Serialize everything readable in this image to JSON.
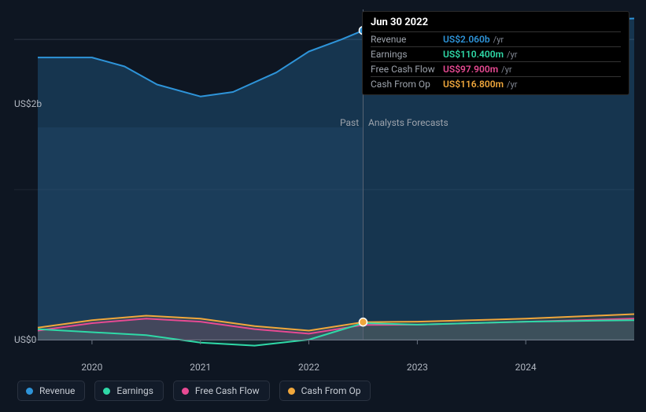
{
  "chart": {
    "type": "area-line",
    "background_color": "#0e1622",
    "plot_background_past": "#1a2a3d",
    "plot_background_future": "#0e1622",
    "grid_color": "#2f3846",
    "axis_label_color": "#b0b6c0",
    "section_label_color": "#9da3ac",
    "ylim": [
      0,
      2.2
    ],
    "ytick_positions": [
      0,
      2
    ],
    "ytick_labels": [
      "US$0",
      "US$2b"
    ],
    "x_years": [
      2019.5,
      2025
    ],
    "xtick_positions": [
      2020,
      2021,
      2022,
      2023,
      2024
    ],
    "xtick_labels": [
      "2020",
      "2021",
      "2022",
      "2023",
      "2024"
    ],
    "divider_year": 2022.5,
    "past_label": "Past",
    "forecast_label": "Analysts Forecasts",
    "series": {
      "revenue": {
        "label": "Revenue",
        "color": "#2e94d9",
        "fill_opacity": 0.25,
        "line_width": 2,
        "xs": [
          2019.5,
          2020.0,
          2020.3,
          2020.6,
          2021.0,
          2021.3,
          2021.7,
          2022.0,
          2022.3,
          2022.5,
          2022.8,
          2023.3,
          2024.0,
          2025.0
        ],
        "ys": [
          1.88,
          1.88,
          1.82,
          1.7,
          1.62,
          1.65,
          1.78,
          1.92,
          2.0,
          2.06,
          2.08,
          2.1,
          2.12,
          2.14
        ]
      },
      "earnings": {
        "label": "Earnings",
        "color": "#2fd9a7",
        "fill_opacity": 0.1,
        "line_width": 2,
        "xs": [
          2019.5,
          2020.0,
          2020.5,
          2021.0,
          2021.5,
          2022.0,
          2022.5,
          2023.0,
          2024.0,
          2025.0
        ],
        "ys": [
          0.07,
          0.05,
          0.03,
          -0.02,
          -0.04,
          0.0,
          0.11,
          0.1,
          0.12,
          0.13
        ]
      },
      "fcf": {
        "label": "Free Cash Flow",
        "color": "#e84a93",
        "fill_opacity": 0.1,
        "line_width": 2,
        "xs": [
          2019.5,
          2020.0,
          2020.5,
          2021.0,
          2021.5,
          2022.0,
          2022.5,
          2023.0,
          2024.0,
          2025.0
        ],
        "ys": [
          0.06,
          0.11,
          0.14,
          0.12,
          0.07,
          0.04,
          0.098,
          0.1,
          0.12,
          0.14
        ]
      },
      "cfo": {
        "label": "Cash From Op",
        "color": "#f0a73c",
        "fill_opacity": 0.1,
        "line_width": 2,
        "xs": [
          2019.5,
          2020.0,
          2020.5,
          2021.0,
          2021.5,
          2022.0,
          2022.5,
          2023.0,
          2024.0,
          2025.0
        ],
        "ys": [
          0.08,
          0.13,
          0.16,
          0.14,
          0.09,
          0.06,
          0.117,
          0.12,
          0.14,
          0.17
        ]
      }
    },
    "marker": {
      "x": 2022.5,
      "radius": 4,
      "stroke": "#ffffff"
    }
  },
  "tooltip": {
    "date": "Jun 30 2022",
    "unit_suffix": "/yr",
    "rows": [
      {
        "name": "Revenue",
        "value": "US$2.060b",
        "color": "#2e94d9"
      },
      {
        "name": "Earnings",
        "value": "US$110.400m",
        "color": "#2fd9a7"
      },
      {
        "name": "Free Cash Flow",
        "value": "US$97.900m",
        "color": "#e84a93"
      },
      {
        "name": "Cash From Op",
        "value": "US$116.800m",
        "color": "#f0a73c"
      }
    ]
  },
  "legend": [
    {
      "key": "revenue",
      "label": "Revenue",
      "color": "#2e94d9"
    },
    {
      "key": "earnings",
      "label": "Earnings",
      "color": "#2fd9a7"
    },
    {
      "key": "fcf",
      "label": "Free Cash Flow",
      "color": "#e84a93"
    },
    {
      "key": "cfo",
      "label": "Cash From Op",
      "color": "#f0a73c"
    }
  ]
}
